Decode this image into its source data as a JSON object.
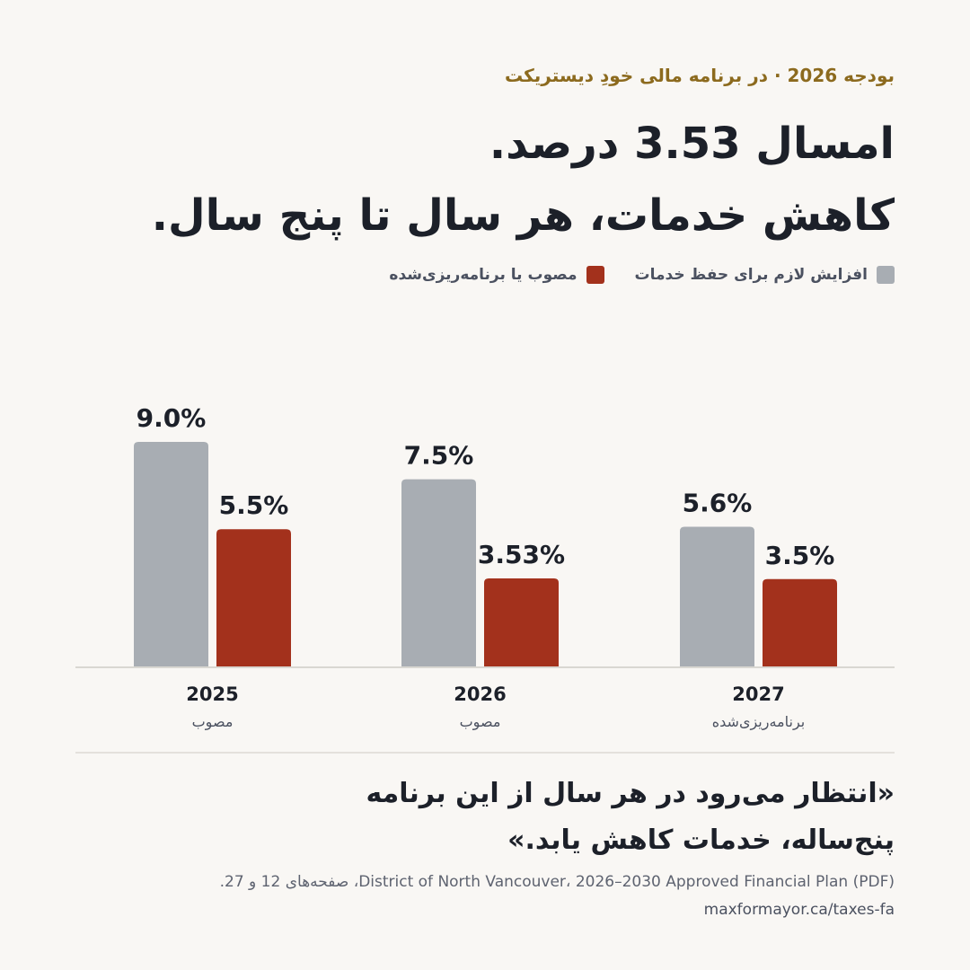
{
  "kicker": "بودجه 2026 · در برنامه مالی خودِ دیستریکت",
  "headline": {
    "line1": "امسال 3.53 درصد.",
    "line2": "کاهش خدمات، هر سال تا پنج سال."
  },
  "legend": [
    {
      "label": "افزایش لازم برای حفظ خدمات",
      "color": "#a8adb3"
    },
    {
      "label": "مصوب یا برنامه‌ریزی‌شده",
      "color": "#a3311c"
    }
  ],
  "chart_data": {
    "type": "bar",
    "categories": [
      "2025",
      "2026",
      "2027"
    ],
    "category_sublabels": [
      "مصوب",
      "مصوب",
      "برنامه‌ریزی‌شده"
    ],
    "series": [
      {
        "name": "افزایش لازم برای حفظ خدمات",
        "values": [
          9.0,
          7.5,
          5.6
        ],
        "labels": [
          "9.0%",
          "7.5%",
          "5.6%"
        ],
        "color": "#a8adb3"
      },
      {
        "name": "مصوب یا برنامه‌ریزی‌شده",
        "values": [
          5.5,
          3.53,
          3.5
        ],
        "labels": [
          "5.5%",
          "3.53%",
          "3.5%"
        ],
        "color": "#a3311c"
      }
    ],
    "ylim": [
      0,
      9.0
    ],
    "grid": false,
    "legend_position": "top-right"
  },
  "quote": {
    "line1": "«انتظار می‌رود در هر سال از این برنامه",
    "line2": "پنج‌ساله، خدمات کاهش یابد.»"
  },
  "source": "District of North Vancouver، 2026–2030 Approved Financial Plan (PDF)، صفحه‌های 12 و 27.",
  "url": "maxformayor.ca/taxes-fa"
}
